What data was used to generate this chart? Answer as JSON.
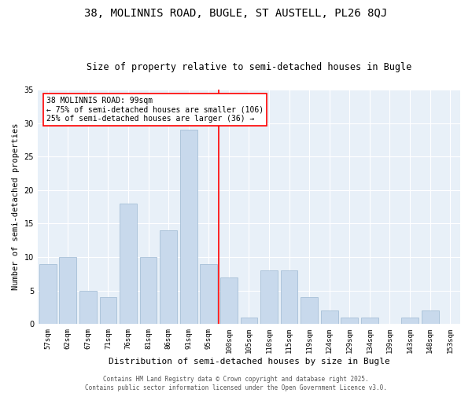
{
  "title": "38, MOLINNIS ROAD, BUGLE, ST AUSTELL, PL26 8QJ",
  "subtitle": "Size of property relative to semi-detached houses in Bugle",
  "xlabel": "Distribution of semi-detached houses by size in Bugle",
  "ylabel": "Number of semi-detached properties",
  "categories": [
    "57sqm",
    "62sqm",
    "67sqm",
    "71sqm",
    "76sqm",
    "81sqm",
    "86sqm",
    "91sqm",
    "95sqm",
    "100sqm",
    "105sqm",
    "110sqm",
    "115sqm",
    "119sqm",
    "124sqm",
    "129sqm",
    "134sqm",
    "139sqm",
    "143sqm",
    "148sqm",
    "153sqm"
  ],
  "values": [
    9,
    10,
    5,
    4,
    18,
    10,
    14,
    29,
    9,
    7,
    1,
    8,
    8,
    4,
    2,
    1,
    1,
    0,
    1,
    2,
    0
  ],
  "bar_color": "#c8d9ec",
  "bar_edgecolor": "#9db8d2",
  "property_line_x": 8.5,
  "annotation_text": "38 MOLINNIS ROAD: 99sqm\n← 75% of semi-detached houses are smaller (106)\n25% of semi-detached houses are larger (36) →",
  "ylim": [
    0,
    35
  ],
  "yticks": [
    0,
    5,
    10,
    15,
    20,
    25,
    30,
    35
  ],
  "bg_color": "#e8f0f8",
  "footer": "Contains HM Land Registry data © Crown copyright and database right 2025.\nContains public sector information licensed under the Open Government Licence v3.0.",
  "title_fontsize": 10,
  "subtitle_fontsize": 8.5,
  "xlabel_fontsize": 8,
  "ylabel_fontsize": 7.5,
  "tick_fontsize": 6.5,
  "ytick_fontsize": 7,
  "annotation_fontsize": 7,
  "footer_fontsize": 5.5
}
